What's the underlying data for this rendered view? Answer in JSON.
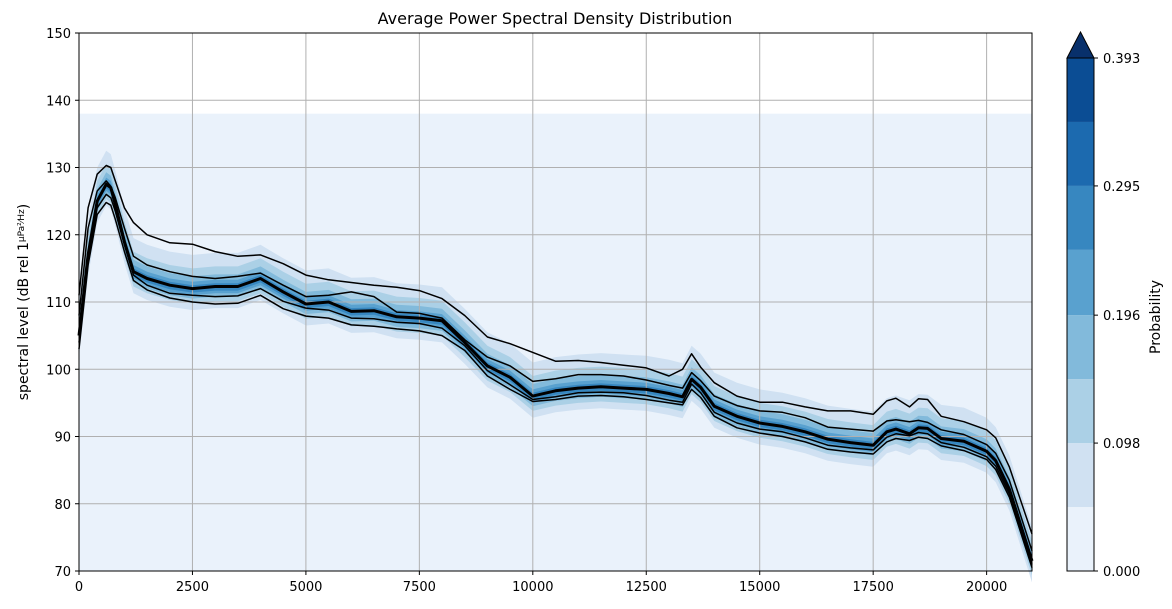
{
  "chart_data": {
    "type": "line",
    "title": "Average Power Spectral Density Distribution",
    "xlabel": "",
    "ylabel": "spectral level (dB rel 1",
    "ylabel_unit_num": "μPa²",
    "ylabel_unit_den": "Hz",
    "ylabel_close": ")",
    "xlim": [
      0,
      21000
    ],
    "ylim": [
      70,
      150
    ],
    "xticks": [
      0,
      2500,
      5000,
      7500,
      10000,
      12500,
      15000,
      17500,
      20000
    ],
    "yticks": [
      70,
      80,
      90,
      100,
      110,
      120,
      130,
      140,
      150
    ],
    "grid": true,
    "density_region_top": 138,
    "x": [
      0,
      200,
      400,
      600,
      700,
      800,
      1000,
      1200,
      1500,
      2000,
      2500,
      3000,
      3500,
      4000,
      4500,
      5000,
      5500,
      6000,
      6500,
      7000,
      7500,
      8000,
      8500,
      9000,
      9500,
      10000,
      10500,
      11000,
      11500,
      12000,
      12500,
      13000,
      13300,
      13500,
      13700,
      14000,
      14500,
      15000,
      15500,
      16000,
      16500,
      17000,
      17500,
      17800,
      18000,
      18300,
      18500,
      18700,
      19000,
      19500,
      20000,
      20200,
      20500,
      21000
    ],
    "series": [
      {
        "values": [
          111,
          124,
          129,
          130.3,
          130,
          128,
          124,
          121.8,
          120,
          118.8,
          118.6,
          117.5,
          116.8,
          117,
          115.7,
          114,
          113.3,
          112.9,
          112.5,
          112.2,
          111.7,
          110.5,
          108,
          104.8,
          103.8,
          102.5,
          101.2,
          101.3,
          101,
          100.6,
          100.2,
          99,
          100,
          102.3,
          100.3,
          98,
          96,
          95.1,
          95.1,
          94.4,
          93.8,
          93.8,
          93.3,
          95.3,
          95.7,
          94.4,
          95.6,
          95.5,
          93,
          92.2,
          91,
          89.8,
          85.5,
          75.5
        ]
      },
      {
        "values": [
          108,
          121,
          126.5,
          128,
          127.2,
          125.5,
          121,
          116.8,
          115.5,
          114.5,
          113.8,
          113.5,
          113.8,
          114.3,
          112.5,
          110.8,
          111,
          111.5,
          110.8,
          108.5,
          108.3,
          107.6,
          104.4,
          101.8,
          100.5,
          98.2,
          98.6,
          99.2,
          99.2,
          99,
          98.4,
          97.6,
          97.2,
          99.5,
          98.3,
          96,
          94.6,
          93.8,
          93.6,
          92.8,
          91.4,
          91.1,
          90.8,
          92.3,
          92.5,
          92.2,
          92.4,
          92.1,
          91,
          90.3,
          88.8,
          87.5,
          83.5,
          73
        ]
      },
      {
        "values": [
          105,
          117,
          125,
          127.5,
          127,
          124.5,
          119,
          114.5,
          113.5,
          112.5,
          112,
          112.3,
          112.3,
          113.5,
          111.5,
          109.7,
          110,
          108.6,
          108.7,
          107.8,
          107.6,
          107.2,
          104,
          100.5,
          98.8,
          96,
          96.8,
          97.2,
          97.4,
          97.2,
          97,
          96.4,
          95.9,
          98.5,
          97.3,
          94.5,
          93,
          92,
          91.5,
          90.7,
          89.6,
          89.1,
          88.7,
          90.7,
          91.1,
          90.4,
          91.3,
          91.2,
          89.7,
          89.3,
          87.8,
          86.4,
          82.2,
          71.5
        ]
      },
      {
        "values": [
          104,
          116.5,
          124,
          126,
          125.5,
          123.5,
          118.5,
          114,
          112.5,
          111.3,
          111,
          110.8,
          110.9,
          112,
          110.1,
          109.1,
          108.8,
          107.6,
          107.5,
          107,
          106.8,
          106.1,
          103.5,
          99.8,
          97.7,
          95.5,
          95.9,
          96.5,
          96.6,
          96.5,
          96.1,
          95.4,
          95.1,
          97.8,
          96.5,
          93.6,
          92,
          91.1,
          90.7,
          89.8,
          88.7,
          88.3,
          88,
          89.9,
          90.4,
          90.1,
          90.6,
          90.4,
          89.1,
          88.4,
          87,
          85.6,
          81.5,
          71
        ]
      },
      {
        "values": [
          103,
          115.5,
          123,
          124.8,
          124.4,
          122.3,
          117.5,
          113.2,
          111.8,
          110.6,
          110,
          109.7,
          109.8,
          111,
          109,
          107.9,
          107.6,
          106.6,
          106.4,
          106,
          105.7,
          105,
          102.8,
          99,
          97,
          95.2,
          95.5,
          96,
          96.1,
          95.9,
          95.5,
          95,
          94.7,
          97,
          95.8,
          93,
          91.3,
          90.5,
          90,
          89.2,
          88.1,
          87.7,
          87.4,
          89.2,
          89.7,
          89.4,
          89.9,
          89.7,
          88.6,
          87.9,
          86.6,
          85.1,
          81,
          70.5
        ]
      }
    ],
    "series_widths": [
      1.5,
      1.5,
      3,
      1.5,
      1.5
    ],
    "colorbar": {
      "label": "Probability",
      "ticks": [
        "0.000",
        "0.098",
        "0.196",
        "0.295",
        "0.393"
      ],
      "tick_values": [
        0,
        0.098,
        0.196,
        0.295,
        0.393
      ],
      "levels": [
        0,
        0.049,
        0.098,
        0.147,
        0.196,
        0.246,
        0.295,
        0.344,
        0.393
      ],
      "colors": [
        "#eaf2fb",
        "#d0e1f2",
        "#abd0e6",
        "#82badb",
        "#59a1cf",
        "#3787c0",
        "#1c6aaf",
        "#0b4d94"
      ],
      "extend_color": "#08306b"
    }
  }
}
